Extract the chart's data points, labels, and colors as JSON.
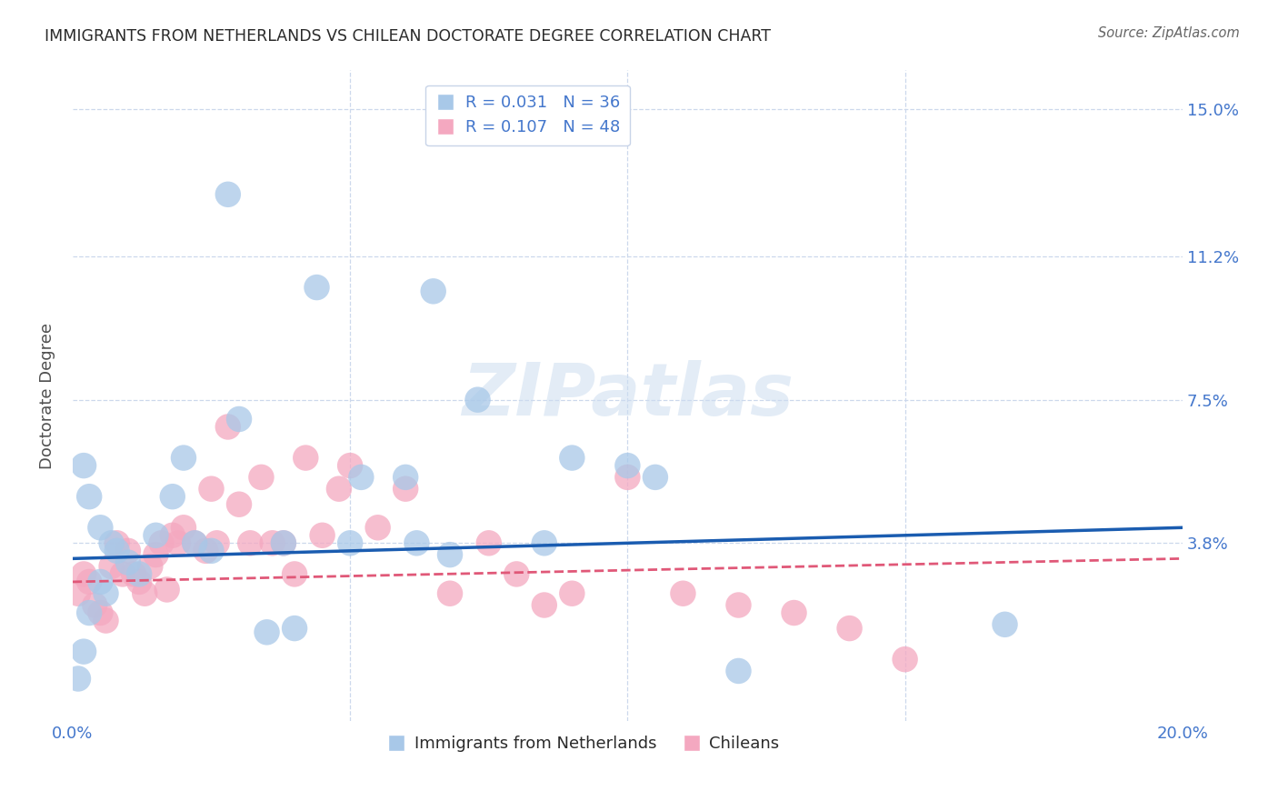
{
  "title": "IMMIGRANTS FROM NETHERLANDS VS CHILEAN DOCTORATE DEGREE CORRELATION CHART",
  "source": "Source: ZipAtlas.com",
  "ylabel": "Doctorate Degree",
  "xlim": [
    0.0,
    0.2
  ],
  "ylim": [
    -0.008,
    0.16
  ],
  "ytick_vals": [
    0.038,
    0.075,
    0.112,
    0.15
  ],
  "ytick_labels": [
    "3.8%",
    "7.5%",
    "11.2%",
    "15.0%"
  ],
  "xtick_vals": [
    0.0,
    0.2
  ],
  "xtick_labels": [
    "0.0%",
    "20.0%"
  ],
  "blue_color": "#a8c8e8",
  "pink_color": "#f4a8c0",
  "line_blue": "#1a5cb0",
  "line_pink": "#e05878",
  "legend_label1": "Immigrants from Netherlands",
  "legend_label2": "Chileans",
  "watermark": "ZIPatlas",
  "blue_scatter_x": [
    0.028,
    0.044,
    0.03,
    0.065,
    0.002,
    0.003,
    0.005,
    0.007,
    0.008,
    0.01,
    0.012,
    0.005,
    0.006,
    0.003,
    0.015,
    0.018,
    0.02,
    0.022,
    0.025,
    0.06,
    0.062,
    0.068,
    0.073,
    0.085,
    0.1,
    0.105,
    0.002,
    0.001,
    0.035,
    0.04,
    0.038,
    0.168,
    0.12,
    0.05,
    0.052,
    0.09
  ],
  "blue_scatter_y": [
    0.128,
    0.104,
    0.07,
    0.103,
    0.058,
    0.05,
    0.042,
    0.038,
    0.036,
    0.033,
    0.03,
    0.028,
    0.025,
    0.02,
    0.04,
    0.05,
    0.06,
    0.038,
    0.036,
    0.055,
    0.038,
    0.035,
    0.075,
    0.038,
    0.058,
    0.055,
    0.01,
    0.003,
    0.015,
    0.016,
    0.038,
    0.017,
    0.005,
    0.038,
    0.055,
    0.06
  ],
  "pink_scatter_x": [
    0.001,
    0.002,
    0.003,
    0.004,
    0.005,
    0.006,
    0.007,
    0.008,
    0.009,
    0.01,
    0.011,
    0.012,
    0.013,
    0.014,
    0.015,
    0.016,
    0.017,
    0.018,
    0.019,
    0.02,
    0.022,
    0.024,
    0.025,
    0.026,
    0.028,
    0.03,
    0.032,
    0.034,
    0.036,
    0.038,
    0.04,
    0.042,
    0.045,
    0.048,
    0.05,
    0.055,
    0.06,
    0.068,
    0.075,
    0.08,
    0.085,
    0.09,
    0.1,
    0.11,
    0.12,
    0.13,
    0.14,
    0.15
  ],
  "pink_scatter_y": [
    0.025,
    0.03,
    0.028,
    0.022,
    0.02,
    0.018,
    0.032,
    0.038,
    0.03,
    0.036,
    0.03,
    0.028,
    0.025,
    0.032,
    0.035,
    0.038,
    0.026,
    0.04,
    0.038,
    0.042,
    0.038,
    0.036,
    0.052,
    0.038,
    0.068,
    0.048,
    0.038,
    0.055,
    0.038,
    0.038,
    0.03,
    0.06,
    0.04,
    0.052,
    0.058,
    0.042,
    0.052,
    0.025,
    0.038,
    0.03,
    0.022,
    0.025,
    0.055,
    0.025,
    0.022,
    0.02,
    0.016,
    0.008
  ],
  "blue_line_x": [
    0.0,
    0.2
  ],
  "blue_line_y": [
    0.034,
    0.042
  ],
  "pink_line_x": [
    0.0,
    0.2
  ],
  "pink_line_y": [
    0.028,
    0.034
  ],
  "grid_color": "#ccd8ec",
  "title_color": "#2a2a2a",
  "axis_color": "#4477cc",
  "background": "#ffffff"
}
